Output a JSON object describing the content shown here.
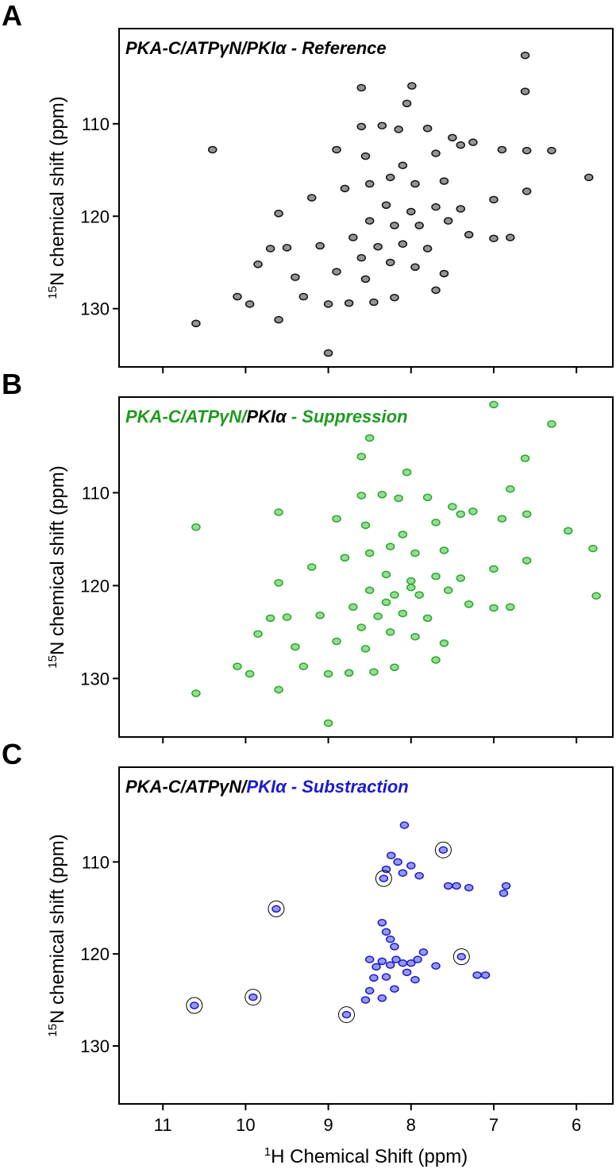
{
  "chart_data": [
    {
      "type": "scatter",
      "label": "A",
      "title_parts": [
        {
          "text": "PKA-C/ATPγN/PKIα - Reference",
          "color": "#000000"
        }
      ],
      "ylabel_sup": "15",
      "ylabel": "N chemical shift (ppm)",
      "xlim": [
        11.53,
        5.56
      ],
      "ylim": [
        99.7,
        136.3
      ],
      "xticks": [
        11,
        10,
        9,
        8,
        7,
        6
      ],
      "yticks": [
        110,
        120,
        130
      ],
      "xtick_labels": false,
      "series": [
        {
          "color": "#111111",
          "marker": "peak",
          "x": [
            6.62,
            7.99,
            8.6,
            6.62,
            8.05,
            8.6,
            8.35,
            8.15,
            7.8,
            7.5,
            7.25,
            6.9,
            6.6,
            6.3,
            7.4,
            7.7,
            8.55,
            8.9,
            10.4,
            8.1,
            8.25,
            8.5,
            7.95,
            7.6,
            8.8,
            9.2,
            9.6,
            8.3,
            8.0,
            7.7,
            7.4,
            7.0,
            6.6,
            5.85,
            8.5,
            8.2,
            7.9,
            7.55,
            7.3,
            7.0,
            6.8,
            8.7,
            8.4,
            8.1,
            7.8,
            9.1,
            9.5,
            9.7,
            8.6,
            8.25,
            7.95,
            7.6,
            9.85,
            9.4,
            8.9,
            8.55,
            9.3,
            10.1,
            9.95,
            9.0,
            8.75,
            8.45,
            8.2,
            7.7,
            9.6,
            10.6,
            9.0
          ],
          "values": [
            102.6,
            105.9,
            106.1,
            106.5,
            107.8,
            110.3,
            110.2,
            110.6,
            110.5,
            111.5,
            112.0,
            112.8,
            112.9,
            112.9,
            112.3,
            113.2,
            113.5,
            112.8,
            112.8,
            114.5,
            115.8,
            116.5,
            116.5,
            116.2,
            117.0,
            118.0,
            119.7,
            118.8,
            119.5,
            119.0,
            119.2,
            118.2,
            117.3,
            115.8,
            120.5,
            121.0,
            121.0,
            120.5,
            122.0,
            122.4,
            122.3,
            122.3,
            123.3,
            123.0,
            123.5,
            123.2,
            123.4,
            123.5,
            124.5,
            125.0,
            125.5,
            126.2,
            125.2,
            126.6,
            126.0,
            126.8,
            128.7,
            128.7,
            129.5,
            129.5,
            129.4,
            129.3,
            128.8,
            128.0,
            131.2,
            131.6,
            134.8
          ]
        }
      ]
    },
    {
      "type": "scatter",
      "label": "B",
      "title_parts": [
        {
          "text": "PKA-C/ATPγN/",
          "color": "#1f9a1f"
        },
        {
          "text": "PKIα",
          "color": "#000000"
        },
        {
          "text": " - Suppression",
          "color": "#1f9a1f"
        }
      ],
      "ylabel_sup": "15",
      "ylabel": "N chemical shift (ppm)",
      "xlim": [
        11.53,
        5.56
      ],
      "ylim": [
        99.7,
        136.3
      ],
      "xticks": [
        11,
        10,
        9,
        8,
        7,
        6
      ],
      "yticks": [
        110,
        120,
        130
      ],
      "xtick_labels": false,
      "series": [
        {
          "color": "#22aa22",
          "marker": "peak",
          "x": [
            7.0,
            6.3,
            8.5,
            6.62,
            8.6,
            8.05,
            6.8,
            8.6,
            8.35,
            8.15,
            7.8,
            7.5,
            7.25,
            6.9,
            6.6,
            7.4,
            7.7,
            8.55,
            8.9,
            9.6,
            10.6,
            6.1,
            5.8,
            5.76,
            8.1,
            8.25,
            8.5,
            7.95,
            7.6,
            8.8,
            9.2,
            9.6,
            8.3,
            8.0,
            7.7,
            7.4,
            7.0,
            6.6,
            8.5,
            8.2,
            7.9,
            7.55,
            7.3,
            7.0,
            6.8,
            8.7,
            8.4,
            8.1,
            7.8,
            9.1,
            9.5,
            9.7,
            8.6,
            8.25,
            7.95,
            7.6,
            9.85,
            9.4,
            8.9,
            8.55,
            9.3,
            10.1,
            9.95,
            9.0,
            8.75,
            8.45,
            8.2,
            7.7,
            9.6,
            10.6,
            9.0,
            8.0,
            8.3
          ],
          "values": [
            100.5,
            102.6,
            104.1,
            106.3,
            106.1,
            107.8,
            109.6,
            110.3,
            110.2,
            110.6,
            110.5,
            111.5,
            112.0,
            112.8,
            112.3,
            112.3,
            113.2,
            113.5,
            112.8,
            112.1,
            113.7,
            114.1,
            116.0,
            121.1,
            114.5,
            115.8,
            116.5,
            116.5,
            116.2,
            117.0,
            118.0,
            119.7,
            118.8,
            119.5,
            119.0,
            119.2,
            118.2,
            117.3,
            120.5,
            121.0,
            121.0,
            120.5,
            122.0,
            122.4,
            122.3,
            122.3,
            123.3,
            123.0,
            123.5,
            123.2,
            123.4,
            123.5,
            124.5,
            125.0,
            125.5,
            126.2,
            125.2,
            126.6,
            126.0,
            126.8,
            128.7,
            128.7,
            129.5,
            129.5,
            129.4,
            129.3,
            128.8,
            128.0,
            131.2,
            131.6,
            134.8,
            120.2,
            121.8
          ]
        }
      ]
    },
    {
      "type": "scatter",
      "label": "C",
      "title_parts": [
        {
          "text": "PKA-C/ATPγN/",
          "color": "#000000"
        },
        {
          "text": "PKIα - Substraction",
          "color": "#1a1ad0"
        }
      ],
      "ylabel_sup": "15",
      "ylabel": "N chemical shift (ppm)",
      "xlabel_sup": "1",
      "xlabel": "H Chemical Shift (ppm)",
      "xlim": [
        11.53,
        5.56
      ],
      "ylim": [
        99.7,
        136.3
      ],
      "xticks": [
        11,
        10,
        9,
        8,
        7,
        6
      ],
      "yticks": [
        110,
        120,
        130
      ],
      "xtick_labels": true,
      "series": [
        {
          "color": "#1a1ad0",
          "marker": "peak",
          "x": [
            8.24,
            8.16,
            8.3,
            8.1,
            8.0,
            7.9,
            8.35,
            8.3,
            8.25,
            8.2,
            8.5,
            8.42,
            8.35,
            8.25,
            8.18,
            8.1,
            8.05,
            8.0,
            7.92,
            7.85,
            8.45,
            8.3,
            8.2,
            8.35,
            8.5,
            8.55,
            7.95,
            7.55,
            7.45,
            7.3,
            6.85,
            6.88,
            7.1,
            7.2,
            7.7,
            8.08,
            8.78,
            8.33,
            7.61,
            7.39,
            9.63,
            9.91,
            10.62
          ],
          "values": [
            109.3,
            110.0,
            110.8,
            111.2,
            110.4,
            111.5,
            116.6,
            117.6,
            118.4,
            119.2,
            120.6,
            121.4,
            120.8,
            121.2,
            120.6,
            121.0,
            122.0,
            121.0,
            120.6,
            119.8,
            122.6,
            122.5,
            123.8,
            124.8,
            124.0,
            125.0,
            122.8,
            112.6,
            112.6,
            112.8,
            112.6,
            113.4,
            122.3,
            122.3,
            121.3,
            106.0,
            126.6,
            111.8,
            108.7,
            120.3,
            115.1,
            124.7,
            125.6
          ]
        },
        {
          "color": "#000000",
          "marker": "ring",
          "x": [
            10.62,
            9.91,
            9.63,
            8.78,
            8.33,
            7.61,
            7.39
          ],
          "values": [
            125.6,
            124.7,
            115.1,
            126.6,
            111.8,
            108.7,
            120.3
          ]
        }
      ]
    }
  ]
}
